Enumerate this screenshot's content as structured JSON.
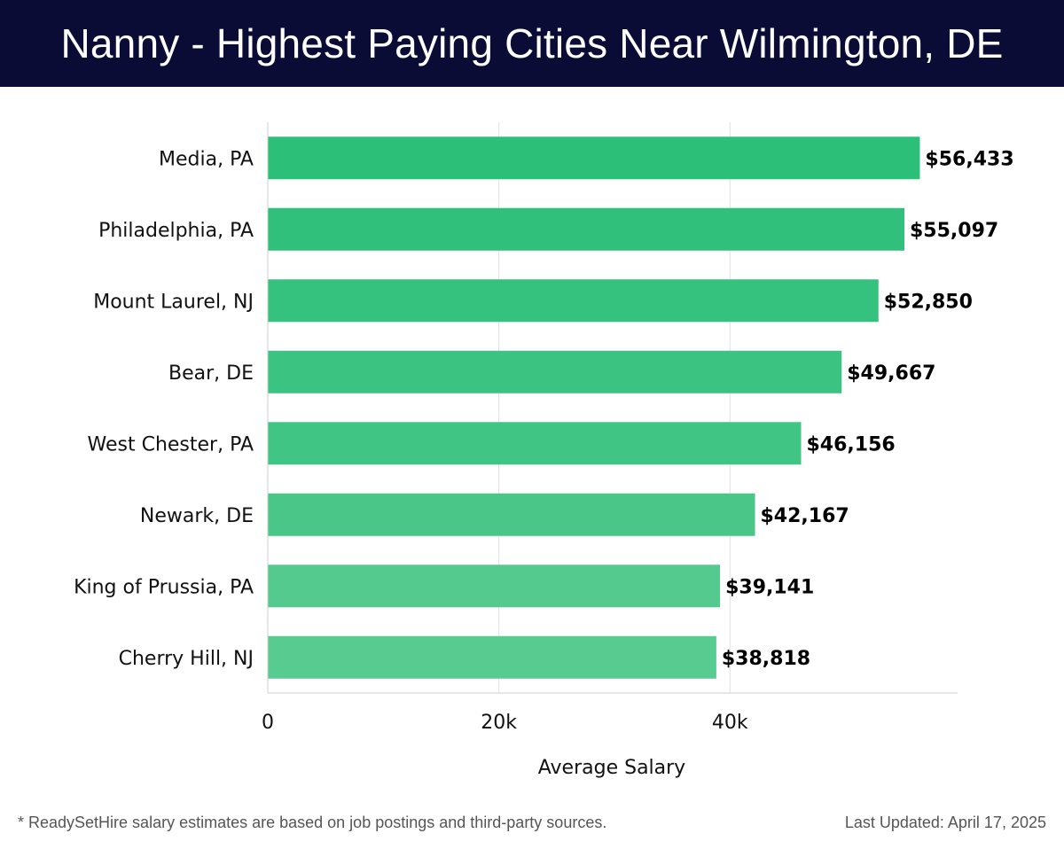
{
  "header": {
    "title": "Nanny - Highest Paying Cities Near Wilmington, DE"
  },
  "chart_data": {
    "type": "bar",
    "orientation": "horizontal",
    "title": "Nanny - Highest Paying Cities Near Wilmington, DE",
    "categories": [
      "Media, PA",
      "Philadelphia, PA",
      "Mount Laurel, NJ",
      "Bear, DE",
      "West Chester, PA",
      "Newark, DE",
      "King of Prussia, PA",
      "Cherry Hill, NJ"
    ],
    "values": [
      56433,
      55097,
      52850,
      49667,
      46156,
      42167,
      39141,
      38818
    ],
    "value_labels": [
      "$56,433",
      "$55,097",
      "$52,850",
      "$49,667",
      "$46,156",
      "$42,167",
      "$39,141",
      "$38,818"
    ],
    "xlabel": "Average Salary",
    "ylabel": "",
    "xlim": [
      0,
      59700
    ],
    "xticks": [
      0,
      20000,
      40000
    ],
    "xtick_labels": [
      "0",
      "20k",
      "40k"
    ],
    "grid": true,
    "bar_colors": [
      "#2bbf78",
      "#30c07b",
      "#35c17e",
      "#3bc381",
      "#41c585",
      "#4ac788",
      "#55ca8e",
      "#58cb90"
    ]
  },
  "footer": {
    "note": "* ReadySetHire salary estimates are based on job postings and third-party sources.",
    "updated": "Last Updated: April 17, 2025"
  }
}
